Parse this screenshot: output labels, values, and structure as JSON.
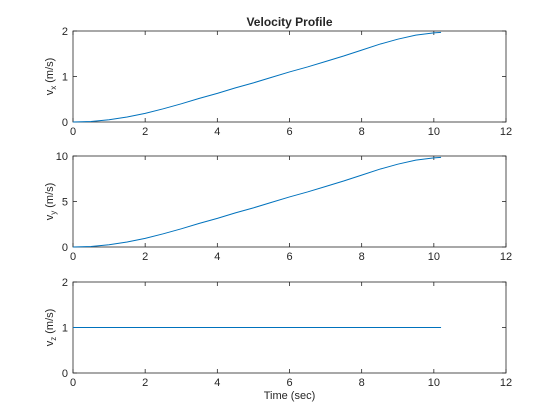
{
  "chart_data": [
    {
      "type": "line",
      "title": "Velocity Profile",
      "ylabel": "v_x (m/s)",
      "ylabel_parts": {
        "main": "v",
        "sub": "x",
        "rest": " (m/s)"
      },
      "xlabel": "",
      "xlim": [
        0,
        12
      ],
      "ylim": [
        0,
        2
      ],
      "xticks": [
        0,
        2,
        4,
        6,
        8,
        10,
        12
      ],
      "yticks": [
        0,
        1,
        2
      ],
      "grid": false,
      "series": [
        {
          "color": "#0072BD",
          "x": [
            0,
            0.5,
            1,
            1.5,
            2,
            2.5,
            3,
            3.5,
            4,
            4.5,
            5,
            5.5,
            6,
            6.5,
            7,
            7.5,
            8,
            8.5,
            9,
            9.5,
            10,
            10.2
          ],
          "values": [
            0,
            0.01,
            0.05,
            0.11,
            0.19,
            0.29,
            0.4,
            0.52,
            0.63,
            0.75,
            0.86,
            0.98,
            1.1,
            1.21,
            1.33,
            1.45,
            1.58,
            1.71,
            1.82,
            1.91,
            1.96,
            1.97
          ]
        }
      ]
    },
    {
      "type": "line",
      "title": "",
      "ylabel": "v_y (m/s)",
      "ylabel_parts": {
        "main": "v",
        "sub": "y",
        "rest": " (m/s)"
      },
      "xlabel": "",
      "xlim": [
        0,
        12
      ],
      "ylim": [
        0,
        10
      ],
      "xticks": [
        0,
        2,
        4,
        6,
        8,
        10,
        12
      ],
      "yticks": [
        0,
        5,
        10
      ],
      "grid": false,
      "series": [
        {
          "color": "#0072BD",
          "x": [
            0,
            0.5,
            1,
            1.5,
            2,
            2.5,
            3,
            3.5,
            4,
            4.5,
            5,
            5.5,
            6,
            6.5,
            7,
            7.5,
            8,
            8.5,
            9,
            9.5,
            10,
            10.2
          ],
          "values": [
            0,
            0.05,
            0.25,
            0.55,
            0.95,
            1.45,
            2.0,
            2.6,
            3.15,
            3.75,
            4.3,
            4.9,
            5.5,
            6.05,
            6.65,
            7.25,
            7.9,
            8.55,
            9.1,
            9.55,
            9.8,
            9.85
          ]
        }
      ]
    },
    {
      "type": "line",
      "title": "",
      "ylabel": "v_z (m/s)",
      "ylabel_parts": {
        "main": "v",
        "sub": "z",
        "rest": " (m/s)"
      },
      "xlabel": "Time (sec)",
      "xlim": [
        0,
        12
      ],
      "ylim": [
        0,
        2
      ],
      "xticks": [
        0,
        2,
        4,
        6,
        8,
        10,
        12
      ],
      "yticks": [
        0,
        1,
        2
      ],
      "grid": false,
      "series": [
        {
          "color": "#0072BD",
          "x": [
            0,
            10.2
          ],
          "values": [
            1,
            1
          ]
        }
      ]
    }
  ]
}
